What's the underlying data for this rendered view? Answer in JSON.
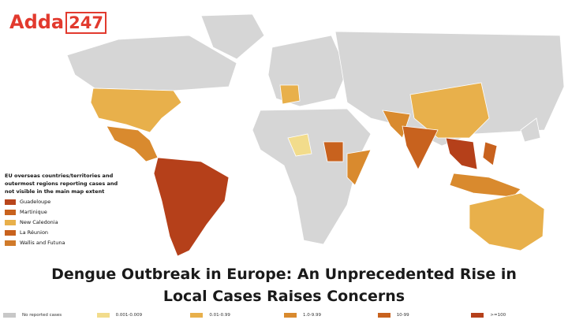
{
  "header": {
    "logo_main": "Adda",
    "logo_accent": "247"
  },
  "map": {
    "inset_legend": {
      "title": "EU overseas countries/territories and outermost regions reporting cases and not visible in the main map extent",
      "items": [
        {
          "label": "Guadeloupe",
          "color": "#b8451c"
        },
        {
          "label": "Martinique",
          "color": "#c8621e"
        },
        {
          "label": "New Caledonia",
          "color": "#e8b04b"
        },
        {
          "label": "La Réunion",
          "color": "#c8621e"
        },
        {
          "label": "Wallis and Futuna",
          "color": "#d07a2a"
        }
      ]
    }
  },
  "title": "Dengue Outbreak in Europe: An Unprecedented Rise in Local Cases Raises Concerns",
  "legend": {
    "items": [
      {
        "label": "No reported cases",
        "color": "#c8c8c8"
      },
      {
        "label": "0.001-0.009",
        "color": "#f2dc8c"
      },
      {
        "label": "0.01-0.99",
        "color": "#e8b04b"
      },
      {
        "label": "1.0-9.99",
        "color": "#d98a2e"
      },
      {
        "label": "10-99",
        "color": "#c8621e"
      },
      {
        "label": ">=100",
        "color": "#b5401a"
      }
    ]
  }
}
